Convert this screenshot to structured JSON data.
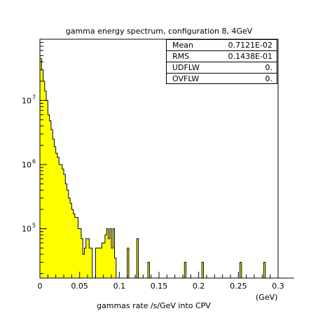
{
  "chart_data": {
    "type": "histogram",
    "title": "gamma energy spectrum, configuration 8, 4GeV",
    "xlabel": "gammas rate /s/GeV into CPV",
    "xunit": "(GeV)",
    "xlim": [
      0,
      0.3
    ],
    "ylim_log": [
      17000,
      90000000
    ],
    "y_scale": "log",
    "fill_color": "#ffff00",
    "x_ticks": [
      {
        "v": 0,
        "label": "0"
      },
      {
        "v": 0.05,
        "label": "0.05"
      },
      {
        "v": 0.1,
        "label": "0.1"
      },
      {
        "v": 0.15,
        "label": "0.15"
      },
      {
        "v": 0.2,
        "label": "0.2"
      },
      {
        "v": 0.25,
        "label": "0.25"
      },
      {
        "v": 0.3,
        "label": "0.3"
      }
    ],
    "y_ticks": [
      {
        "v": 100000,
        "base": "10",
        "exp": "5"
      },
      {
        "v": 1000000,
        "base": "10",
        "exp": "6"
      },
      {
        "v": 10000000,
        "base": "10",
        "exp": "7"
      }
    ],
    "bin_width": 0.002,
    "values": [
      45000000,
      30000000,
      20000000,
      14000000,
      10000000,
      6000000,
      4800000,
      3500000,
      2500000,
      1900000,
      1500000,
      1300000,
      1000000,
      1000000,
      850000,
      700000,
      500000,
      400000,
      300000,
      250000,
      200000,
      170000,
      150000,
      150000,
      100000,
      100000,
      70000,
      40000,
      50000,
      70000,
      70000,
      50000,
      50000,
      0,
      0,
      50000,
      50000,
      50000,
      50000,
      60000,
      60000,
      80000,
      100000,
      70000,
      100000,
      50000,
      100000,
      35000,
      0,
      0,
      0,
      0,
      0,
      0,
      0,
      50000,
      0,
      0,
      0,
      0,
      0,
      70000,
      0,
      0,
      0,
      0,
      0,
      0,
      30000,
      0,
      0,
      0,
      0,
      0,
      0,
      0,
      0,
      0,
      0,
      0,
      0,
      0,
      0,
      0,
      0,
      0,
      0,
      0,
      0,
      0,
      0,
      30000,
      0,
      0,
      0,
      0,
      0,
      0,
      0,
      0,
      0,
      0,
      30000,
      0,
      0,
      0,
      0,
      0,
      0,
      0,
      0,
      0,
      0,
      0,
      0,
      0,
      0,
      0,
      0,
      0,
      0,
      0,
      0,
      0,
      0,
      0,
      30000,
      0,
      0,
      0,
      0,
      0,
      0,
      0,
      0,
      0,
      0,
      0,
      0,
      0,
      0,
      30000,
      0,
      0,
      0,
      0,
      0,
      0,
      0,
      0,
      0,
      0,
      0,
      0,
      0,
      0,
      0,
      0,
      0,
      0
    ]
  },
  "stats": [
    {
      "label": "Mean",
      "value": "0.7121E-02"
    },
    {
      "label": "RMS",
      "value": "0.1438E-01"
    },
    {
      "label": "UDFLW",
      "value": "0."
    },
    {
      "label": "OVFLW",
      "value": "0."
    }
  ]
}
